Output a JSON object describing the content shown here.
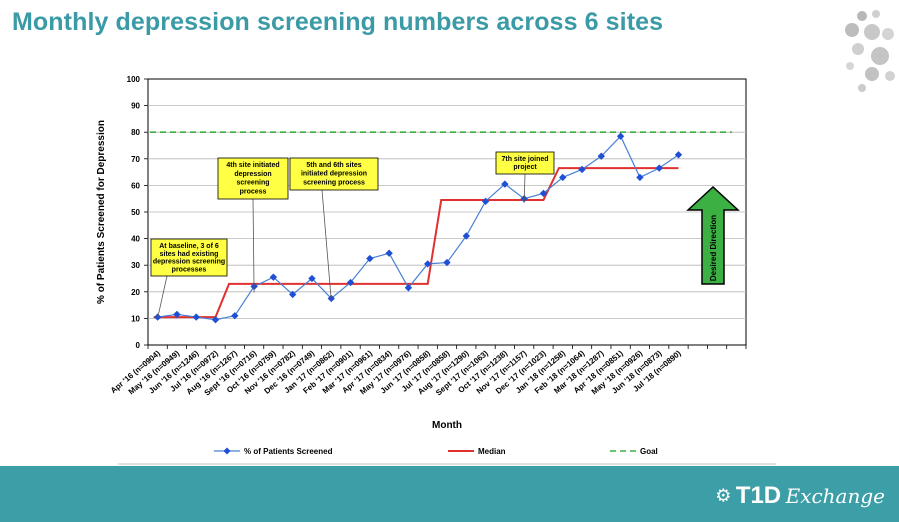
{
  "page": {
    "title": "Monthly depression screening numbers across 6 sites",
    "brand_main": "T1D",
    "brand_script": "Exchange",
    "colors": {
      "title": "#3a9aa6",
      "footer": "#3c9ea6",
      "series": "#4a7fd4",
      "marker": "#1f4fd6",
      "median": "#e03030",
      "goal": "#3cb043",
      "arrow": "#3cb043",
      "callout": "#ffff44"
    }
  },
  "chart_data": {
    "type": "line",
    "title": "",
    "xlabel": "Month",
    "ylabel": "% of Patients Screened for Depression",
    "ylim": [
      0,
      100
    ],
    "yticks": [
      0,
      10,
      20,
      30,
      40,
      50,
      60,
      70,
      80,
      90,
      100
    ],
    "grid": "horizontal",
    "legend_position": "bottom",
    "categories": [
      "Apr '16 (n=0904)",
      "May '16 (n=0949)",
      "Jun '16 (n=1246)",
      "Jul '16 (n=0972)",
      "Aug '16 (n=1267)",
      "Sept '16 (n=0716)",
      "Oct '16 (n=0759)",
      "Nov '16 (n=0782)",
      "Dec '16 (n=0749)",
      "Jan '17 (n=0862)",
      "Feb '17 (n=0901)",
      "Mar '17 (n=0961)",
      "Apr '17 (n=0834)",
      "May '17 (n=0976)",
      "Jun '17 (n=0858)",
      "Jul '17 (n=0858)",
      "Aug '17 (n=1290)",
      "Sept '17 (n=1063)",
      "Oct '17 (n=1238)",
      "Nov '17 (n=1157)",
      "Dec '17 (n=1023)",
      "Jan '18 (n=1258)",
      "Feb '18 (n=1064)",
      "Mar '18 (n=1287)",
      "Apr '18 (n=0851)",
      "May '18 (n=0926)",
      "Jun '18 (n=0873)",
      "Jul '18 (n=0890)"
    ],
    "extra_empty_slots": 3,
    "series": [
      {
        "name": "% of Patients Screened",
        "values": [
          10.5,
          11.5,
          10.5,
          9.5,
          11,
          22,
          25.5,
          19,
          25,
          17.5,
          23.5,
          32.5,
          34.5,
          21.5,
          30.5,
          31,
          41,
          54,
          60.5,
          55,
          57,
          63,
          66,
          71,
          78.5,
          63,
          66.5,
          71.5
        ]
      }
    ],
    "median": {
      "name": "Median",
      "values": [
        10.5,
        10.5,
        10.5,
        10.5,
        null,
        23,
        23,
        23,
        23,
        23,
        23,
        23,
        23,
        23,
        23,
        null,
        54.5,
        54.5,
        54.5,
        54.5,
        54.5,
        66.5,
        66.5,
        66.5,
        66.5,
        66.5,
        66.5,
        66.5
      ]
    },
    "goal": {
      "name": "Goal",
      "value": 80
    },
    "annotations": [
      {
        "lines": [
          "At baseline, 3 of 6",
          "sites had existing",
          "depression screening",
          "processes"
        ],
        "point_index": 0
      },
      {
        "lines": [
          "4th site initiated",
          "depression",
          "screening",
          "process"
        ],
        "point_index": 5
      },
      {
        "lines": [
          "5th and 6th sites",
          "initiated depression",
          "screening process"
        ],
        "point_index": 9
      },
      {
        "lines": [
          "7th site joined",
          "project"
        ],
        "point_index": 19
      }
    ],
    "direction_label": "Desired Direction"
  }
}
